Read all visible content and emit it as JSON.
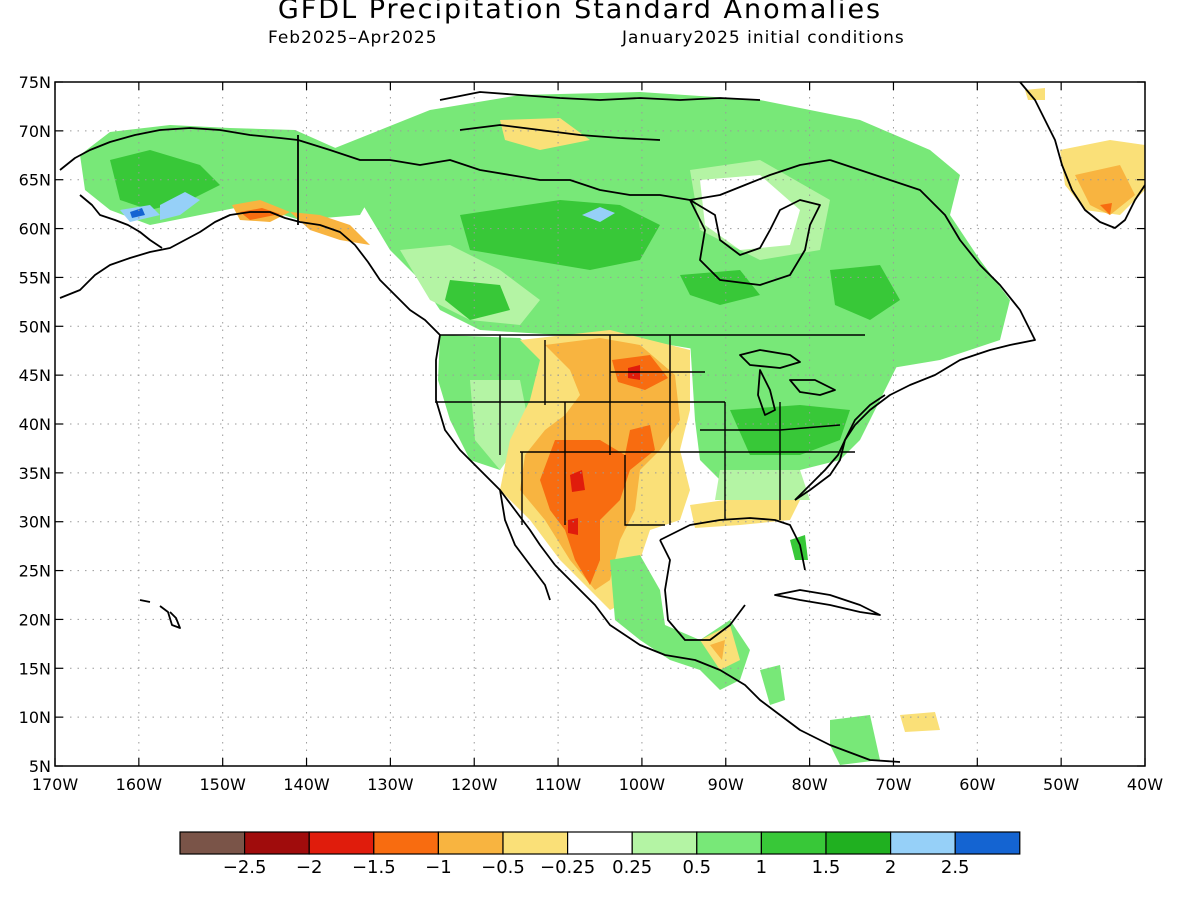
{
  "title": "GFDL Precipitation Standard Anomalies",
  "subtitle_left": "Feb2025–Apr2025",
  "subtitle_right": "January2025 initial conditions",
  "map": {
    "lon_min": -170,
    "lon_max": -40,
    "lat_min": 5,
    "lat_max": 75,
    "lat_labels": [
      "75N",
      "70N",
      "65N",
      "60N",
      "55N",
      "50N",
      "45N",
      "40N",
      "35N",
      "30N",
      "25N",
      "20N",
      "15N",
      "10N",
      "5N"
    ],
    "lon_labels": [
      "170W",
      "160W",
      "150W",
      "140W",
      "130W",
      "120W",
      "110W",
      "100W",
      "90W",
      "80W",
      "70W",
      "60W",
      "50W",
      "40W"
    ]
  },
  "legend": {
    "colors": [
      "#7a5448",
      "#a00c0c",
      "#e01c0c",
      "#f86c10",
      "#f8b440",
      "#fae078",
      "#ffffff",
      "#b4f4a4",
      "#78e878",
      "#38c838",
      "#20b020",
      "#96d0f8",
      "#1464d2"
    ],
    "labels": [
      "−2.5",
      "−2",
      "−1.5",
      "−1",
      "−0.5",
      "−0.25",
      "0.25",
      "0.5",
      "1",
      "1.5",
      "2",
      "2.5"
    ]
  }
}
